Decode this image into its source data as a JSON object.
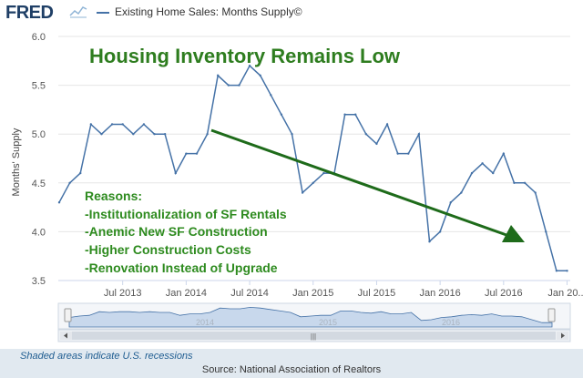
{
  "header": {
    "logo": "FRED",
    "legend_label": "Existing Home Sales: Months Supply©"
  },
  "footer": {
    "recession_note": "Shaded areas indicate U.S. recessions",
    "source": "Source: National Association of Realtors"
  },
  "annotations": {
    "headline": "Housing Inventory Remains Low",
    "reasons": [
      "Reasons:",
      "-Institutionalization of SF Rentals",
      "-Anemic New SF Construction",
      "-Higher Construction Costs",
      "-Renovation Instead of Upgrade"
    ]
  },
  "navigator": {
    "year_labels": [
      "2014",
      "2015",
      "2016"
    ]
  },
  "colors": {
    "series": "#4572a7",
    "headline": "#2e7d1f",
    "reasons": "#2e8b1f",
    "arrow": "#1e6b1a"
  },
  "chart_data": {
    "type": "line",
    "ylabel": "Months' Supply",
    "ylim": [
      3.5,
      6.0
    ],
    "yticks": [
      "3.5",
      "4.0",
      "4.5",
      "5.0",
      "5.5",
      "6.0"
    ],
    "xticks": [
      "Jul 2013",
      "Jan 2014",
      "Jul 2014",
      "Jan 2015",
      "Jul 2015",
      "Jan 2016",
      "Jul 2016",
      "Jan 20..."
    ],
    "grid": true,
    "series": [
      {
        "x": [
          "2013-01",
          "2013-02",
          "2013-03",
          "2013-04",
          "2013-05",
          "2013-06",
          "2013-07",
          "2013-08",
          "2013-09",
          "2013-10",
          "2013-11",
          "2013-12",
          "2014-01",
          "2014-02",
          "2014-03",
          "2014-04",
          "2014-05",
          "2014-06",
          "2014-07",
          "2014-08",
          "2014-09",
          "2014-10",
          "2014-11",
          "2014-12",
          "2015-01",
          "2015-02",
          "2015-03",
          "2015-04",
          "2015-05",
          "2015-06",
          "2015-07",
          "2015-08",
          "2015-09",
          "2015-10",
          "2015-11",
          "2015-12",
          "2016-01",
          "2016-02",
          "2016-03",
          "2016-04",
          "2016-05",
          "2016-06",
          "2016-07",
          "2016-08",
          "2016-09",
          "2016-10",
          "2016-11",
          "2016-12",
          "2017-01"
        ],
        "values": [
          4.3,
          4.5,
          4.6,
          5.1,
          5.0,
          5.1,
          5.1,
          5.0,
          5.1,
          5.0,
          5.0,
          4.6,
          4.8,
          4.8,
          5.0,
          5.6,
          5.5,
          5.5,
          5.7,
          5.6,
          5.4,
          5.2,
          5.0,
          4.4,
          4.5,
          4.6,
          4.6,
          5.2,
          5.2,
          5.0,
          4.9,
          5.1,
          4.8,
          4.8,
          5.0,
          3.9,
          4.0,
          4.3,
          4.4,
          4.6,
          4.7,
          4.6,
          4.8,
          4.5,
          4.5,
          4.4,
          4.0,
          3.6,
          3.6
        ]
      }
    ]
  }
}
